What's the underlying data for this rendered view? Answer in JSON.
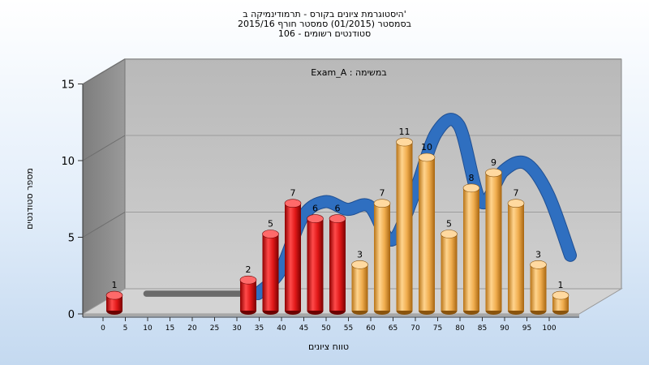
{
  "titles": [
    "היסטוגרמת ציונים בקורס - תרמודינמיקה ב'",
    "בסמסטר  (01/2015)  סמסטר חורף 2015/16",
    "106 - סטודנטים רשומים"
  ],
  "colors": {
    "fail_bar": "#d81a1a",
    "pass_bar": "#f0ad4e",
    "trend_fill": "#2f6fc0",
    "trend_gray": "#6b6b6b",
    "back_wall": "#c2c2c2",
    "side_wall": "#8e8e8e",
    "floor": "#d3d3d3"
  },
  "chart_data": {
    "type": "bar",
    "title": "",
    "annotation": "Exam_A : במשימה",
    "xlabel": "טווח ציונים",
    "ylabel": "מספר סטודנטים",
    "ylim": [
      0,
      15
    ],
    "y_ticks": [
      "0",
      "5",
      "10",
      "15"
    ],
    "categories": [
      "0",
      "5",
      "10",
      "15",
      "20",
      "25",
      "30",
      "35",
      "40",
      "45",
      "50",
      "55",
      "60",
      "65",
      "70",
      "75",
      "80",
      "85",
      "90",
      "95",
      "100"
    ],
    "bars": [
      {
        "x": 0,
        "value": 1,
        "label": "1",
        "group": "fail"
      },
      {
        "x": 30,
        "value": 2,
        "label": "2",
        "group": "fail"
      },
      {
        "x": 35,
        "value": 5,
        "label": "5",
        "group": "fail"
      },
      {
        "x": 40,
        "value": 7,
        "label": "7",
        "group": "fail"
      },
      {
        "x": 45,
        "value": 6,
        "label": "6",
        "group": "fail"
      },
      {
        "x": 50,
        "value": 6,
        "label": "6",
        "group": "fail"
      },
      {
        "x": 55,
        "value": 3,
        "label": "3",
        "group": "pass"
      },
      {
        "x": 60,
        "value": 7,
        "label": "7",
        "group": "pass"
      },
      {
        "x": 65,
        "value": 11,
        "label": "11",
        "group": "pass"
      },
      {
        "x": 70,
        "value": 10,
        "label": "10",
        "group": "pass"
      },
      {
        "x": 75,
        "value": 5,
        "label": "5",
        "group": "pass"
      },
      {
        "x": 80,
        "value": 8,
        "label": "8",
        "group": "pass"
      },
      {
        "x": 85,
        "value": 9,
        "label": "9",
        "group": "pass"
      },
      {
        "x": 90,
        "value": 7,
        "label": "7",
        "group": "pass"
      },
      {
        "x": 95,
        "value": 3,
        "label": "3",
        "group": "pass"
      },
      {
        "x": 100,
        "value": 1,
        "label": "1",
        "group": "pass"
      }
    ],
    "trend": {
      "x": [
        5,
        30,
        35,
        40,
        45,
        50,
        55,
        60,
        65,
        70,
        75,
        80,
        85,
        90,
        95,
        100
      ],
      "y": [
        0.5,
        0.5,
        2,
        5.5,
        6.5,
        6,
        6.2,
        4,
        7,
        11,
        11.5,
        6.5,
        8.5,
        9,
        7,
        3
      ],
      "gray_until_x": 30
    },
    "grid": true,
    "legend": "none"
  }
}
